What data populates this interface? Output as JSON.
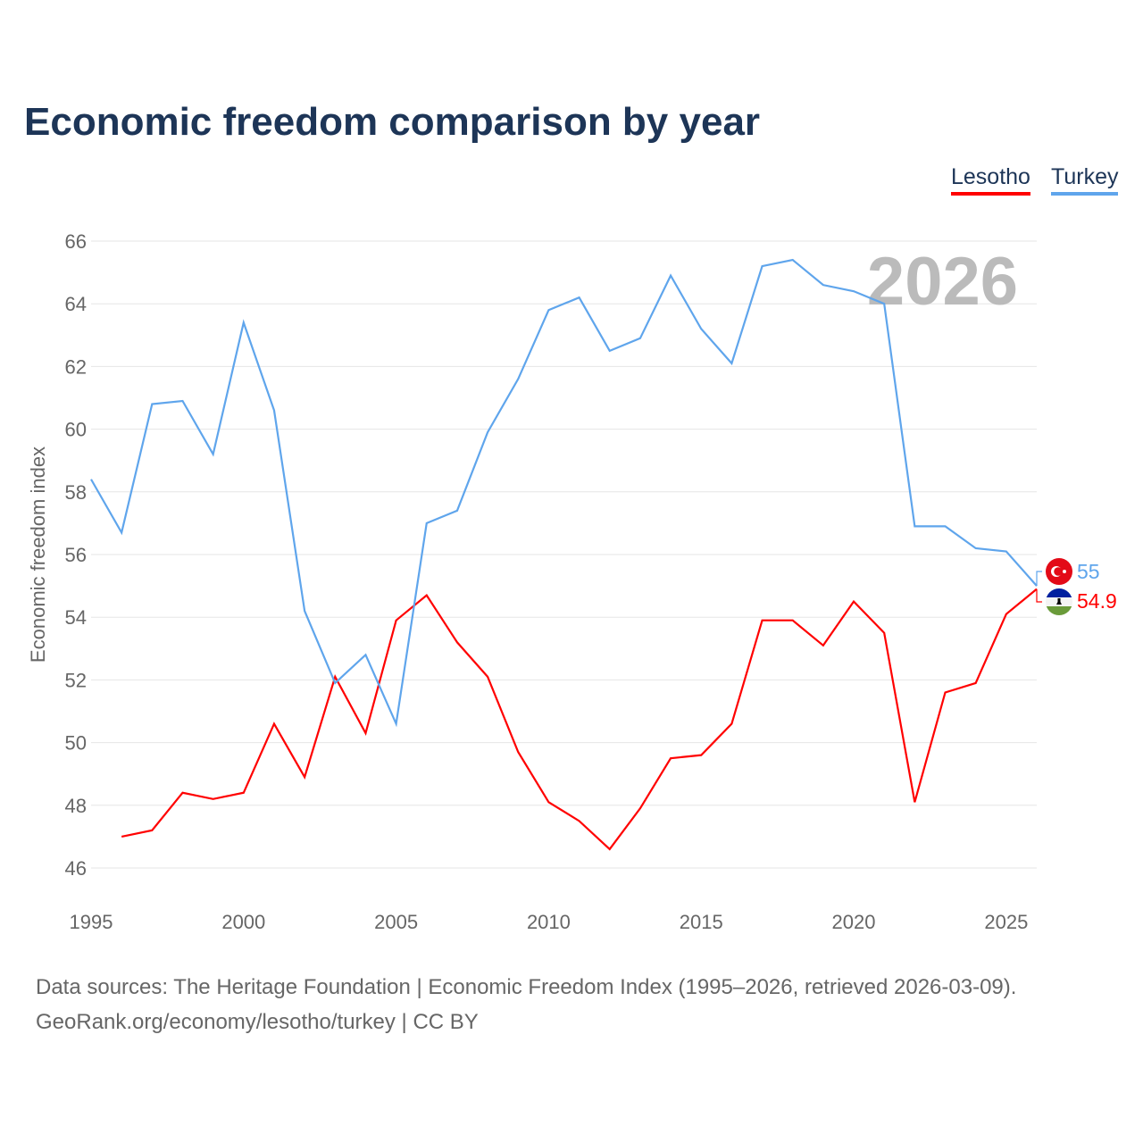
{
  "title": "Economic freedom comparison by year",
  "footer": {
    "line1": "Data sources: The Heritage Foundation | Economic Freedom Index (1995–2026, retrieved 2026-03-09).",
    "line2": "GeoRank.org/economy/lesotho/turkey | CC BY"
  },
  "colors": {
    "Lesotho": "#ff0000",
    "Turkey": "#5fa5ec"
  },
  "chart_data": {
    "type": "line",
    "title": "Economic freedom comparison by year",
    "xlabel": "",
    "ylabel": "Economic freedom index",
    "year_watermark": "2026",
    "xlim": [
      1995,
      2026
    ],
    "ylim": [
      46,
      66
    ],
    "xticks": [
      "1995",
      "2000",
      "2005",
      "2010",
      "2015",
      "2020",
      "2025"
    ],
    "yticks": [
      "46",
      "48",
      "50",
      "52",
      "54",
      "56",
      "58",
      "60",
      "62",
      "64",
      "66"
    ],
    "legend": [
      "Lesotho",
      "Turkey"
    ],
    "legend_position": "top-right",
    "end_labels": {
      "Turkey": "55",
      "Lesotho": "54.9"
    },
    "series": [
      {
        "name": "Lesotho",
        "x": [
          1996,
          1997,
          1998,
          1999,
          2000,
          2001,
          2002,
          2003,
          2004,
          2005,
          2006,
          2007,
          2008,
          2009,
          2010,
          2011,
          2012,
          2013,
          2014,
          2015,
          2016,
          2017,
          2018,
          2019,
          2020,
          2021,
          2022,
          2023,
          2024,
          2025,
          2026
        ],
        "values": [
          47.0,
          47.2,
          48.4,
          48.2,
          48.4,
          50.6,
          48.9,
          52.1,
          50.3,
          53.9,
          54.7,
          53.2,
          52.1,
          49.7,
          48.1,
          47.5,
          46.6,
          47.9,
          49.5,
          49.6,
          50.6,
          53.9,
          53.9,
          53.1,
          54.5,
          53.5,
          48.1,
          51.6,
          51.9,
          54.1,
          54.9
        ]
      },
      {
        "name": "Turkey",
        "x": [
          1995,
          1996,
          1997,
          1998,
          1999,
          2000,
          2001,
          2002,
          2003,
          2004,
          2005,
          2006,
          2007,
          2008,
          2009,
          2010,
          2011,
          2012,
          2013,
          2014,
          2015,
          2016,
          2017,
          2018,
          2019,
          2020,
          2021,
          2022,
          2023,
          2024,
          2025,
          2026
        ],
        "values": [
          58.4,
          56.7,
          60.8,
          60.9,
          59.2,
          63.4,
          60.6,
          54.2,
          51.9,
          52.8,
          50.6,
          57.0,
          57.4,
          59.9,
          61.6,
          63.8,
          64.2,
          62.5,
          62.9,
          64.9,
          63.2,
          62.1,
          65.2,
          65.4,
          64.6,
          64.4,
          64.0,
          56.9,
          56.9,
          56.2,
          56.1,
          55.0
        ]
      }
    ]
  }
}
